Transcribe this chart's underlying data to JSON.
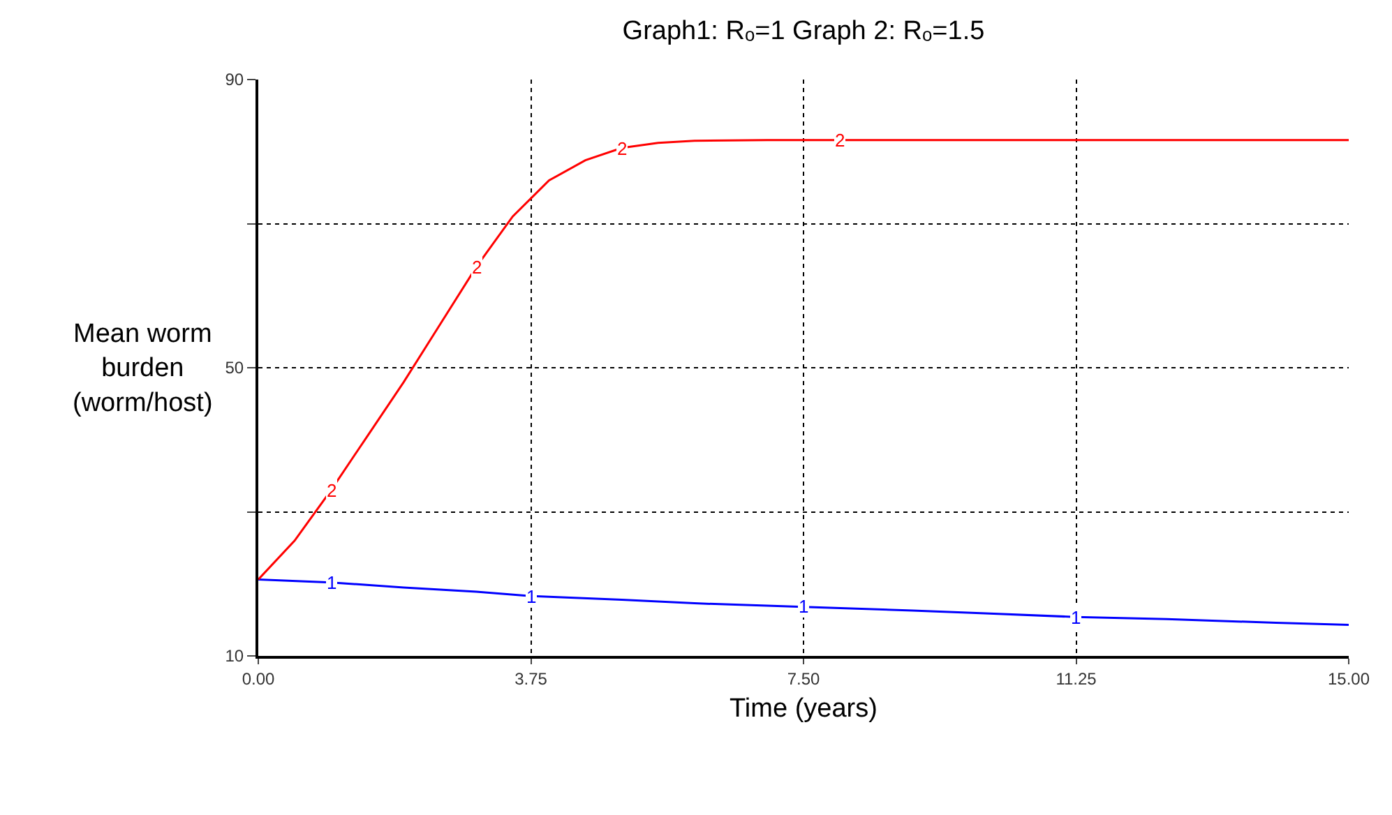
{
  "chart_data": {
    "type": "line",
    "title": "Graph1: Rₒ=1 Graph 2: Rₒ=1.5",
    "xlabel": "Time (years)",
    "ylabel": "Mean worm\nburden\n(worm/host)",
    "xlim": [
      0,
      15
    ],
    "xticks": [
      {
        "value": 0,
        "label": "0.00"
      },
      {
        "value": 3.75,
        "label": "3.75"
      },
      {
        "value": 7.5,
        "label": "7.50"
      },
      {
        "value": 11.25,
        "label": "11.25"
      },
      {
        "value": 15,
        "label": "15.00"
      }
    ],
    "ylim": [
      10,
      90
    ],
    "yticks": [
      10,
      {
        "value": 30,
        "label": null
      },
      50,
      {
        "value": 70,
        "label": null
      },
      90
    ],
    "grid": true,
    "legend": false,
    "marker": "none",
    "line_style": "solid",
    "series": [
      {
        "name": "1",
        "color": "#0000ff",
        "x": [
          0,
          1,
          2,
          3,
          3.75,
          5,
          6,
          7.5,
          9,
          10,
          11.25,
          12.5,
          14,
          15
        ],
        "values": [
          20.6,
          20.2,
          19.5,
          18.9,
          18.3,
          17.8,
          17.3,
          16.8,
          16.3,
          15.9,
          15.4,
          15.1,
          14.6,
          14.3
        ]
      },
      {
        "name": "2",
        "color": "#ff0000",
        "x": [
          0,
          0.5,
          1,
          1.5,
          2,
          2.5,
          3,
          3.5,
          4,
          4.5,
          5,
          5.5,
          6,
          7,
          8,
          10,
          12,
          15
        ],
        "values": [
          20.6,
          26,
          33,
          40.5,
          48,
          56,
          64,
          71,
          76,
          78.8,
          80.5,
          81.2,
          81.5,
          81.6,
          81.6,
          81.6,
          81.6,
          81.6
        ]
      }
    ]
  }
}
